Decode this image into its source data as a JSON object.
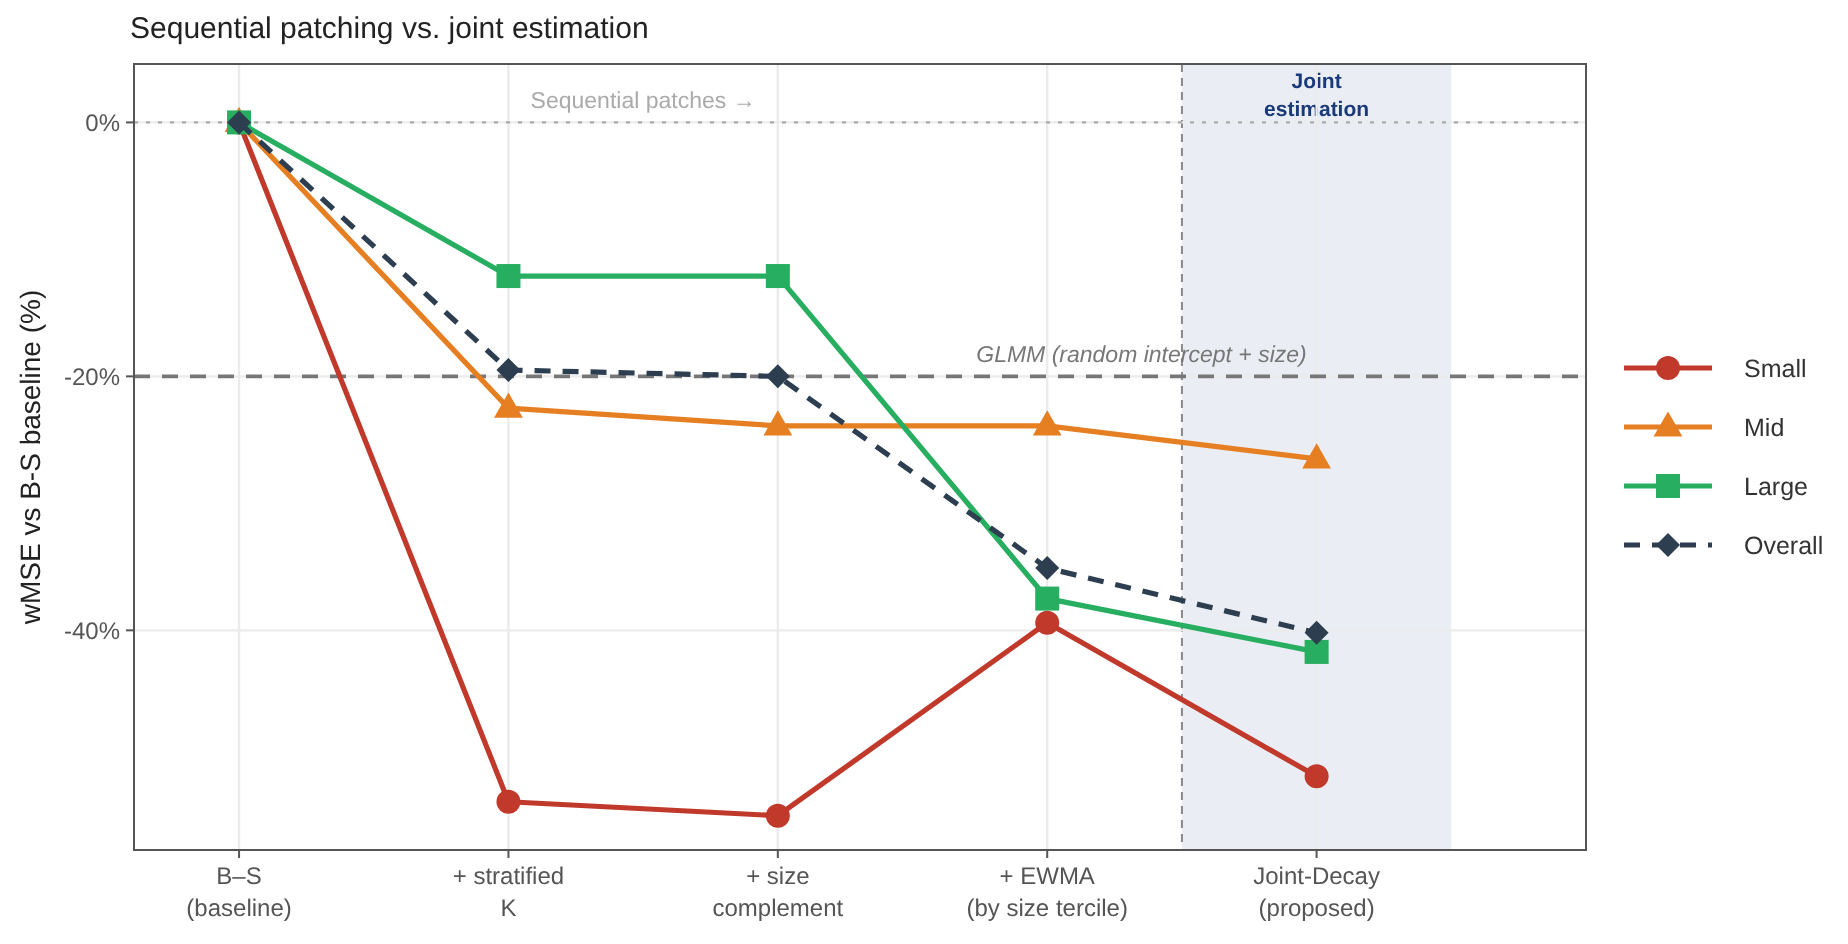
{
  "chart_data": {
    "type": "line",
    "title": "Sequential patching vs. joint estimation",
    "ylabel": "wMSE vs B-S baseline (%)",
    "categories": [
      "B–S\n(baseline)",
      "+ stratified\nK",
      "+ size\ncomplement",
      "+ EWMA\n(by size tercile)",
      "Joint-Decay\n(proposed)"
    ],
    "series": [
      {
        "name": "Small",
        "color": "#c0392b",
        "marker": "circle",
        "line_style": "solid",
        "values": [
          0,
          -53.5,
          -54.6,
          -39.4,
          -51.5
        ]
      },
      {
        "name": "Mid",
        "color": "#e67e22",
        "marker": "triangle",
        "line_style": "solid",
        "values": [
          0,
          -22.5,
          -23.9,
          -23.9,
          -26.5
        ]
      },
      {
        "name": "Large",
        "color": "#27ae60",
        "marker": "square",
        "line_style": "solid",
        "values": [
          0,
          -12.1,
          -12.1,
          -37.5,
          -41.7
        ]
      },
      {
        "name": "Overall",
        "color": "#2c3e50",
        "marker": "diamond",
        "line_style": "dashed",
        "values": [
          0,
          -19.5,
          -20.0,
          -35.1,
          -40.2
        ]
      }
    ],
    "ylim": [
      -57.3,
      4.6
    ],
    "yticks": [
      {
        "value": 0,
        "label": "0%"
      },
      {
        "value": -20,
        "label": "-20%"
      },
      {
        "value": -40,
        "label": "-40%"
      }
    ],
    "ref_lines": [
      {
        "axis": "y",
        "value": 0,
        "label": "Sequential patches →",
        "color": "#aaaaaa",
        "line_style": "dotted"
      },
      {
        "axis": "y",
        "value": -20,
        "label": "GLMM (random intercept + size)",
        "color": "#777777",
        "line_style": "dashed"
      }
    ],
    "annotations": [
      "Joint\nestimation"
    ],
    "grid": true,
    "legend": "right"
  }
}
